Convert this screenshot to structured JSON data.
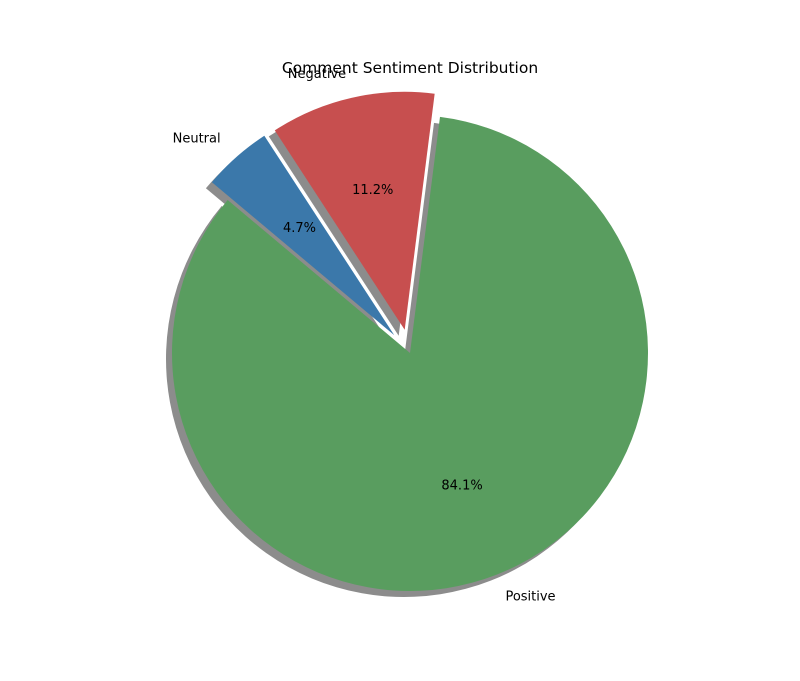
{
  "chart_data": {
    "type": "pie",
    "title": "Comment Sentiment Distribution",
    "slices": [
      {
        "label": "Positive",
        "value": 84.1,
        "pct_label": "84.1%",
        "color": "#599d5f",
        "exploded": false
      },
      {
        "label": "Negative",
        "value": 11.2,
        "pct_label": "11.2%",
        "color": "#c74f4f",
        "exploded": true
      },
      {
        "label": "Neutral",
        "value": 4.7,
        "pct_label": "4.7%",
        "color": "#3b78aa",
        "exploded": true
      }
    ],
    "shadow": true,
    "legend": "none"
  }
}
